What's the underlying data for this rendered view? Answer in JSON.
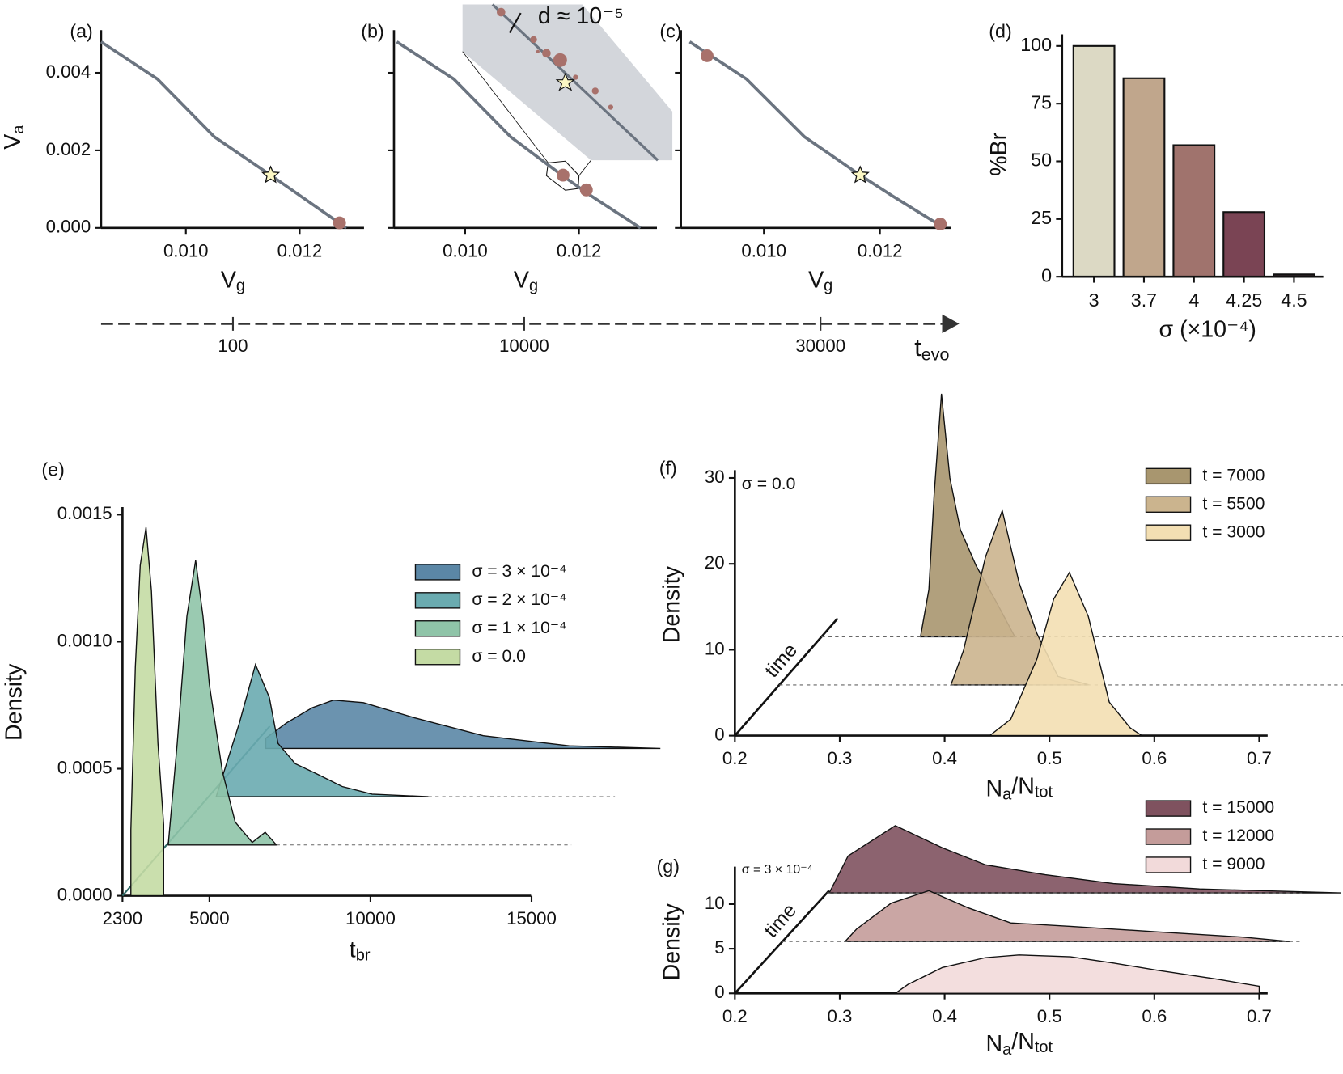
{
  "chart_data": [
    {
      "type": "line",
      "panel_label": "(a)",
      "x_label": [
        "V",
        "g"
      ],
      "y_label": [
        "V",
        "a"
      ],
      "xlim": [
        0.00851,
        0.01313
      ],
      "ylim": [
        0,
        0.0051
      ],
      "xticks": [
        {
          "value": 0.01,
          "label": "0.010"
        },
        {
          "value": 0.012,
          "label": "0.012"
        }
      ],
      "yticks": [
        {
          "value": 0,
          "label": "0.000"
        },
        {
          "value": 0.002,
          "label": "0.002"
        },
        {
          "value": 0.004,
          "label": "0.004"
        }
      ],
      "x": [
        0.00851,
        0.0095,
        0.0105,
        0.01149,
        0.012,
        0.01282
      ],
      "values": [
        0.0048,
        0.00384,
        0.00235,
        0.00136,
        0.00084,
        0
      ],
      "line_color": "#6b7480",
      "points": {
        "x": [
          0.0127
        ],
        "y": [
          0.00013
        ],
        "color": "#a8716b"
      },
      "star": {
        "x": 0.01149,
        "y": 0.00136,
        "color": "#fbf7c4"
      }
    },
    {
      "type": "line",
      "panel_label": "(b)",
      "x_label": [
        "V",
        "g"
      ],
      "xlim": [
        0.00875,
        0.01337
      ],
      "ylim": [
        0,
        0.0051
      ],
      "xticks": [
        {
          "value": 0.01,
          "label": "0.010"
        },
        {
          "value": 0.012,
          "label": "0.012"
        }
      ],
      "yticks": [
        0,
        0.002,
        0.004
      ],
      "ytick_labels": false,
      "x": [
        0.0088,
        0.0098,
        0.0108,
        0.0117,
        0.0122,
        0.01308
      ],
      "values": [
        0.0048,
        0.00384,
        0.00235,
        0.00136,
        0.00084,
        0
      ],
      "line_color": "#6b7480",
      "points": {
        "x": [
          0.01172,
          0.01213
        ],
        "y": [
          0.00136,
          0.00098
        ],
        "color": "#a8716b"
      },
      "annotation": "d ≈ 10⁻⁵"
    },
    {
      "type": "line",
      "panel_label": "(c)",
      "x_label": [
        "V",
        "g"
      ],
      "xlim": [
        0.00857,
        0.01322
      ],
      "ylim": [
        0,
        0.0051
      ],
      "xticks": [
        {
          "value": 0.01,
          "label": "0.010"
        },
        {
          "value": 0.012,
          "label": "0.012"
        }
      ],
      "yticks": [
        0,
        0.002,
        0.004
      ],
      "ytick_labels": false,
      "x": [
        0.00872,
        0.0097,
        0.0107,
        0.01166,
        0.0122,
        0.01311
      ],
      "values": [
        0.0048,
        0.00384,
        0.00235,
        0.00136,
        0.00084,
        0
      ],
      "line_color": "#6b7480",
      "points": {
        "x": [
          0.00902,
          0.01304
        ],
        "y": [
          0.00444,
          0.0001
        ],
        "color": "#a8716b"
      },
      "star": {
        "x": 0.01166,
        "y": 0.00136,
        "color": "#fbf7c4"
      }
    },
    {
      "type": "timeline",
      "ticks": [
        100,
        10000,
        30000
      ],
      "label": [
        "t",
        "evo"
      ]
    },
    {
      "type": "bar",
      "panel_label": "(d)",
      "y_label": "%Br",
      "x_label": "σ (×10⁻⁴)",
      "categories": [
        "3",
        "3.7",
        "4",
        "4.25",
        "4.5"
      ],
      "values": [
        100,
        86,
        57,
        28,
        1
      ],
      "colors": [
        "#dcd9c4",
        "#c0a68c",
        "#a0736d",
        "#7a4454",
        "#3a2a30"
      ],
      "ylim": [
        0,
        105
      ],
      "yticks": [
        0,
        25,
        50,
        75,
        100
      ]
    },
    {
      "type": "ridgeline",
      "panel_label": "(e)",
      "y_label": "Density",
      "x_label": [
        "t",
        "br"
      ],
      "xlim": [
        2300,
        19000
      ],
      "ylim": [
        0,
        0.00153
      ],
      "xticks": [
        2300,
        5000,
        10000,
        15000
      ],
      "yticks": [
        {
          "value": 0,
          "label": "0.0000"
        },
        {
          "value": 0.0005,
          "label": "0.0005"
        },
        {
          "value": 0.001,
          "label": "0.0010"
        },
        {
          "value": 0.0015,
          "label": "0.0015"
        }
      ],
      "series": [
        {
          "name": "σ = 3 × 10⁻⁴",
          "color": "#5b87a6",
          "baseline": 0.00058,
          "x": [
            6750,
            6750,
            7390,
            8190,
            8850,
            9780,
            11380,
            13500,
            16170,
            19000
          ],
          "values": [
            0.00058,
            0.00062,
            0.00068,
            0.00074,
            0.00077,
            0.00076,
            0.0007,
            0.00063,
            0.00059,
            0.00058
          ]
        },
        {
          "name": "σ = 2 × 10⁻⁴",
          "color": "#6aabb0",
          "baseline": 0.00039,
          "x": [
            5210,
            5530,
            5930,
            6430,
            6860,
            7130,
            7660,
            8330,
            9120,
            10050,
            11800
          ],
          "values": [
            0.00039,
            0.00052,
            0.00068,
            0.00091,
            0.00078,
            0.0006,
            0.00052,
            0.00048,
            0.00043,
            0.0004,
            0.00039
          ]
        },
        {
          "name": "σ = 1 × 10⁻⁴",
          "color": "#8fc4a8",
          "baseline": 0.0002,
          "x": [
            3720,
            4000,
            4300,
            4570,
            4800,
            5000,
            5400,
            5800,
            6330,
            6730,
            7080
          ],
          "values": [
            0.0002,
            0.0006,
            0.0011,
            0.00132,
            0.0011,
            0.00083,
            0.00049,
            0.00029,
            0.00021,
            0.00025,
            0.0002
          ]
        },
        {
          "name": "σ = 0.0",
          "color": "#c4dba4",
          "baseline": 0,
          "x": [
            2560,
            2700,
            2850,
            3030,
            3200,
            3400,
            3580
          ],
          "values": [
            0.00026,
            0.0009,
            0.0013,
            0.00145,
            0.0012,
            0.0006,
            0.00028
          ]
        }
      ]
    },
    {
      "type": "ridgeline",
      "panel_label": "(f)",
      "y_label": "Density",
      "x_label": [
        "N",
        "a",
        "/N",
        "tot"
      ],
      "annotation": "σ = 0.0",
      "axis_note": "time",
      "xlim": [
        0.2,
        0.708
      ],
      "ylim": [
        0,
        30.9
      ],
      "xticks": [
        0.2,
        0.3,
        0.4,
        0.5,
        0.6,
        0.7
      ],
      "yticks": [
        0,
        10,
        20,
        30
      ],
      "series": [
        {
          "name": "t = 7000",
          "color": "#a8966f",
          "baseline": 11.5,
          "x": [
            0.377,
            0.385,
            0.39,
            0.397,
            0.405,
            0.415,
            0.43,
            0.45,
            0.467
          ],
          "values": [
            11.5,
            17,
            28,
            39.8,
            30,
            24,
            19.8,
            15.4,
            11.5
          ]
        },
        {
          "name": "t = 5500",
          "color": "#cbb48e",
          "baseline": 5.9,
          "x": [
            0.406,
            0.418,
            0.439,
            0.455,
            0.471,
            0.488,
            0.508,
            0.538
          ],
          "values": [
            5.9,
            9.9,
            20.8,
            26.2,
            17.8,
            11.9,
            6.9,
            5.9
          ]
        },
        {
          "name": "t = 3000",
          "color": "#f3dfb3",
          "baseline": 0,
          "x": [
            0.443,
            0.463,
            0.488,
            0.504,
            0.519,
            0.537,
            0.557,
            0.577,
            0.588
          ],
          "values": [
            0,
            1.9,
            8.9,
            15.9,
            19,
            13.9,
            3.9,
            0.9,
            0
          ]
        }
      ]
    },
    {
      "type": "ridgeline",
      "panel_label": "(g)",
      "y_label": "Density",
      "x_label": [
        "N",
        "a",
        "/N",
        "tot"
      ],
      "annotation": "σ = 3 × 10⁻⁴",
      "axis_note": "time",
      "xlim": [
        0.2,
        0.708
      ],
      "ylim": [
        0,
        14.2
      ],
      "xticks": [
        0.2,
        0.3,
        0.4,
        0.5,
        0.6,
        0.7
      ],
      "yticks": [
        0,
        5,
        10
      ],
      "series": [
        {
          "name": "t = 15000",
          "color": "#7f525f",
          "baseline": 11.25,
          "x": [
            0.29,
            0.308,
            0.353,
            0.398,
            0.439,
            0.496,
            0.561,
            0.643,
            0.778
          ],
          "values": [
            11.25,
            15.4,
            18.8,
            16.3,
            14.4,
            13.3,
            12.3,
            11.7,
            11.25
          ]
        },
        {
          "name": "t = 12000",
          "color": "#c49c9a",
          "baseline": 5.8,
          "x": [
            0.305,
            0.316,
            0.349,
            0.385,
            0.422,
            0.463,
            0.52,
            0.602,
            0.684,
            0.729
          ],
          "values": [
            5.8,
            7.2,
            10.1,
            11.5,
            9.6,
            7.9,
            7.5,
            6.9,
            6.3,
            5.8
          ]
        },
        {
          "name": "t = 9000",
          "color": "#f2dada",
          "baseline": 0,
          "x": [
            0.353,
            0.365,
            0.398,
            0.439,
            0.471,
            0.52,
            0.561,
            0.602,
            0.659,
            0.7
          ],
          "values": [
            0,
            1,
            2.9,
            4,
            4.3,
            4.1,
            3.4,
            2.6,
            1.6,
            0.8
          ]
        }
      ]
    }
  ]
}
